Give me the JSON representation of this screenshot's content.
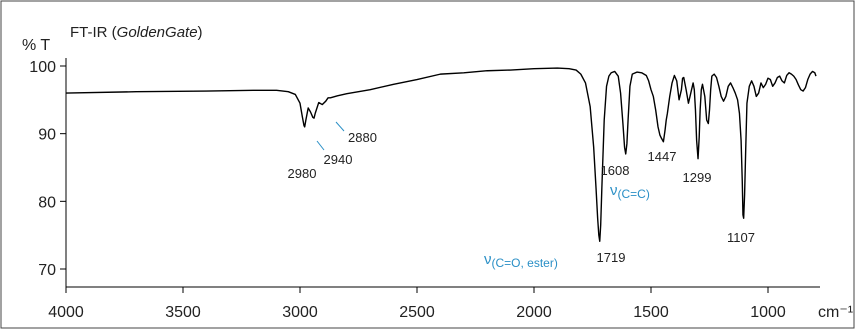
{
  "chart_data": {
    "type": "line",
    "title_prefix": "FT-IR (",
    "title_italic": "GoldenGate",
    "title_suffix": ")",
    "ylabel": "% T",
    "xunit": "cm⁻¹",
    "xlim": [
      4000,
      750
    ],
    "ylim": [
      67,
      101
    ],
    "x_ticks": [
      4000,
      3500,
      3000,
      2500,
      2000,
      1500,
      1000
    ],
    "y_ticks": [
      70,
      80,
      90,
      100
    ],
    "grid": false,
    "series": [
      {
        "color": "#000000",
        "x": [
          4000,
          3700,
          3400,
          3200,
          3100,
          3050,
          3020,
          3000,
          2990,
          2983,
          2980,
          2975,
          2965,
          2955,
          2945,
          2940,
          2935,
          2920,
          2905,
          2890,
          2880,
          2870,
          2840,
          2800,
          2700,
          2600,
          2500,
          2400,
          2300,
          2200,
          2100,
          2000,
          1900,
          1850,
          1820,
          1800,
          1780,
          1760,
          1745,
          1735,
          1728,
          1723,
          1719,
          1715,
          1710,
          1700,
          1690,
          1680,
          1670,
          1655,
          1640,
          1630,
          1620,
          1613,
          1608,
          1603,
          1598,
          1590,
          1580,
          1560,
          1540,
          1520,
          1510,
          1500,
          1490,
          1480,
          1470,
          1462,
          1455,
          1447,
          1440,
          1435,
          1430,
          1420,
          1410,
          1400,
          1390,
          1380,
          1370,
          1365,
          1360,
          1350,
          1340,
          1330,
          1320,
          1315,
          1310,
          1305,
          1299,
          1294,
          1290,
          1285,
          1280,
          1270,
          1262,
          1255,
          1250,
          1245,
          1240,
          1230,
          1220,
          1210,
          1200,
          1190,
          1180,
          1170,
          1160,
          1150,
          1140,
          1130,
          1122,
          1115,
          1110,
          1107,
          1104,
          1100,
          1095,
          1090,
          1080,
          1070,
          1060,
          1050,
          1040,
          1030,
          1020,
          1010,
          1000,
          990,
          980,
          970,
          960,
          950,
          940,
          930,
          920,
          910,
          900,
          890,
          880,
          870,
          860,
          850,
          840,
          830,
          820,
          810,
          800,
          795
        ],
        "y": [
          96.0,
          96.2,
          96.3,
          96.4,
          96.4,
          96.2,
          95.8,
          94.5,
          92.5,
          91.2,
          91.0,
          92.0,
          93.8,
          93.2,
          92.4,
          92.3,
          93.0,
          94.6,
          94.3,
          94.8,
          95.3,
          95.3,
          95.6,
          95.9,
          96.5,
          97.3,
          98.0,
          98.8,
          99.0,
          99.3,
          99.4,
          99.6,
          99.7,
          99.6,
          99.4,
          98.8,
          97.5,
          94.0,
          88.0,
          82.0,
          77.5,
          75.0,
          74.1,
          76.5,
          82.0,
          92.0,
          97.0,
          98.5,
          99.0,
          99.2,
          98.5,
          96.0,
          91.5,
          88.0,
          87.0,
          88.5,
          92.0,
          97.0,
          98.8,
          99.1,
          99.0,
          98.6,
          97.8,
          96.5,
          95.5,
          93.5,
          91.0,
          89.8,
          89.3,
          88.8,
          90.5,
          92.0,
          93.0,
          95.5,
          97.5,
          98.6,
          97.8,
          95.0,
          96.5,
          98.2,
          98.3,
          96.5,
          94.5,
          96.0,
          97.5,
          96.5,
          93.5,
          89.0,
          86.3,
          89.5,
          93.5,
          96.5,
          97.3,
          95.5,
          92.0,
          91.5,
          93.5,
          96.5,
          98.5,
          98.8,
          98.3,
          97.0,
          95.5,
          94.8,
          95.5,
          97.0,
          97.5,
          96.8,
          96.0,
          95.0,
          93.0,
          89.0,
          83.0,
          78.0,
          77.5,
          81.0,
          88.0,
          94.5,
          97.0,
          97.8,
          97.0,
          95.5,
          96.0,
          97.5,
          96.8,
          97.3,
          98.2,
          98.0,
          97.0,
          97.5,
          98.3,
          98.5,
          97.8,
          97.5,
          98.6,
          99.0,
          98.8,
          98.5,
          98.0,
          97.2,
          96.5,
          96.3,
          96.8,
          98.0,
          98.8,
          99.2,
          99.0,
          98.5
        ]
      }
    ],
    "peak_labels": [
      {
        "text": "2980"
      },
      {
        "text": "2940"
      },
      {
        "text": "2880"
      },
      {
        "text": "1719"
      },
      {
        "text": "1608"
      },
      {
        "text": "1447"
      },
      {
        "text": "1299"
      },
      {
        "text": "1107"
      }
    ],
    "assignments": [
      {
        "nu": "ν",
        "sub": "(C=O, ester)"
      },
      {
        "nu": "ν",
        "sub": "(C=C)"
      }
    ]
  }
}
